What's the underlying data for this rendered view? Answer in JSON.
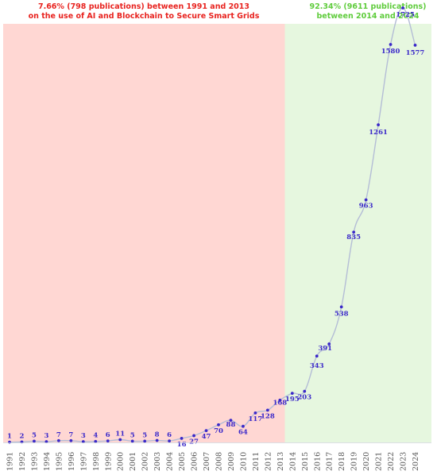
{
  "chart_data": {
    "type": "line",
    "title": "",
    "xlabel": "",
    "ylabel": "",
    "x": [
      "1991",
      "1992",
      "1993",
      "1994",
      "1995",
      "1996",
      "1997",
      "1998",
      "1999",
      "2000",
      "2001",
      "2002",
      "2003",
      "2004",
      "2005",
      "2006",
      "2007",
      "2008",
      "2009",
      "2010",
      "2011",
      "2012",
      "2013",
      "2014",
      "2015",
      "2016",
      "2017",
      "2018",
      "2019",
      "2020",
      "2021",
      "2022",
      "2023",
      "2024"
    ],
    "values": [
      1,
      2,
      5,
      3,
      7,
      7,
      3,
      4,
      6,
      11,
      5,
      5,
      8,
      6,
      16,
      27,
      47,
      70,
      88,
      64,
      117,
      128,
      168,
      195,
      203,
      343,
      391,
      538,
      835,
      963,
      1261,
      1580,
      1725,
      1577
    ],
    "ylim": [
      0,
      1725
    ],
    "grid": false,
    "regions": [
      {
        "from": "1991",
        "to": "2013",
        "color": "#ffd7d3",
        "text_color": "#e8231f",
        "annotation": [
          "7.66% (798 publications) between 1991 and 2013",
          "on the use of AI and Blockchain to Secure Smart Grids"
        ]
      },
      {
        "from": "2014",
        "to": "2024",
        "color": "#e6f7df",
        "text_color": "#5fcc3c",
        "annotation": [
          "92.34% (9611 publications)",
          "between 2014 and 2024"
        ]
      }
    ],
    "line_color": "#b4bdd6",
    "point_color": "#3a28c9",
    "label_color": "#3a28c9"
  }
}
